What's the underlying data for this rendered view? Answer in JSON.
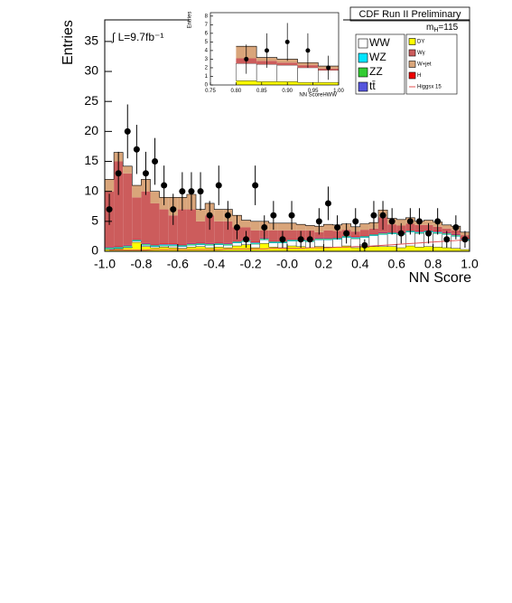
{
  "chart_data": [
    {
      "type": "stacked_histogram",
      "title": "CDF Run II Preliminary",
      "x_label": "NN Score",
      "y_label": "Entries",
      "luminosity": "∫ L=9.7fb⁻¹",
      "mass_label": {
        "symbol": "m",
        "subscript": "H",
        "text": "=115"
      },
      "legend": "upper right",
      "bins": [
        -1,
        -0.95,
        -0.9,
        -0.85,
        -0.8,
        -0.75,
        -0.7,
        -0.65,
        -0.6,
        -0.55,
        -0.5,
        -0.45,
        -0.4,
        -0.35,
        -0.3,
        -0.25,
        -0.2,
        -0.15,
        -0.1,
        -0.05,
        0,
        0.05,
        0.1,
        0.15,
        0.2,
        0.25,
        0.3,
        0.35,
        0.4,
        0.45,
        0.5,
        0.55,
        0.6,
        0.65,
        0.7,
        0.75,
        0.8,
        0.85,
        0.9,
        0.95,
        1
      ],
      "xlim": [
        -1,
        1
      ],
      "ylim": [
        0,
        38.6
      ],
      "xticks": [
        {
          "value": -1,
          "label": "-1.0"
        },
        -0.8,
        -0.6,
        -0.4,
        -0.2,
        {
          "value": 0,
          "label": "-0.0"
        },
        0.2,
        0.4,
        0.6,
        0.8,
        {
          "value": 1,
          "label": "1.0"
        }
      ],
      "yticks": [
        0,
        5,
        10,
        15,
        20,
        25,
        30,
        35
      ],
      "series": [
        {
          "name": "DY",
          "color": "#ffff00",
          "values": [
            0.3,
            0.4,
            0.6,
            1.5,
            0.8,
            0.6,
            0.7,
            0.6,
            0.5,
            0.7,
            0.8,
            0.6,
            0.7,
            0.6,
            0.9,
            1.1,
            0.6,
            1.3,
            0.7,
            0.6,
            0.9,
            0.8,
            0.6,
            0.8,
            0.7,
            0.7,
            0.9,
            0.6,
            0.7,
            0.8,
            0.8,
            0.8,
            0.6,
            0.9,
            0.7,
            0.8,
            0.7,
            0.6,
            0.5,
            0.3
          ]
        },
        {
          "name": "WW",
          "color": "#ffffff",
          "values": [
            0.1,
            0.1,
            0.1,
            0.2,
            0.2,
            0.2,
            0.2,
            0.3,
            0.3,
            0.3,
            0.3,
            0.4,
            0.4,
            0.4,
            0.5,
            0.5,
            0.6,
            0.6,
            0.7,
            0.8,
            0.8,
            0.9,
            1.0,
            1.1,
            1.2,
            1.3,
            1.4,
            1.5,
            1.6,
            1.8,
            2.0,
            2.1,
            2.2,
            2.3,
            2.3,
            2.4,
            2.3,
            2.2,
            2.0,
            1.5
          ]
        },
        {
          "name": "WZ",
          "color": "#00e5ff",
          "values": [
            0.1,
            0.1,
            0.1,
            0.1,
            0.1,
            0.1,
            0.1,
            0.1,
            0.1,
            0.1,
            0.1,
            0.1,
            0.1,
            0.1,
            0.1,
            0.1,
            0.1,
            0.1,
            0.1,
            0.1,
            0.1,
            0.1,
            0.1,
            0.1,
            0.1,
            0.1,
            0.1,
            0.1,
            0.1,
            0.1,
            0.1,
            0.1,
            0.1,
            0.1,
            0.1,
            0.1,
            0.1,
            0.1,
            0.1,
            0.1
          ]
        },
        {
          "name": "ZZ",
          "color": "#33cc33",
          "values": [
            0.1,
            0.1,
            0.1,
            0.1,
            0.1,
            0.1,
            0.1,
            0.1,
            0.1,
            0.1,
            0.1,
            0.1,
            0.1,
            0.1,
            0.1,
            0.1,
            0.1,
            0.1,
            0.1,
            0.1,
            0.1,
            0.1,
            0.1,
            0.1,
            0.1,
            0.1,
            0.1,
            0.1,
            0.1,
            0.1,
            0.1,
            0.1,
            0.1,
            0.1,
            0.1,
            0.1,
            0.1,
            0.1,
            0.1,
            0.1
          ]
        },
        {
          "name": "tt̄",
          "color": "#5555dd",
          "values": [
            0.1,
            0.1,
            0.1,
            0.1,
            0.1,
            0.1,
            0.1,
            0.1,
            0.1,
            0.1,
            0.1,
            0.1,
            0.1,
            0.1,
            0.1,
            0.1,
            0.1,
            0.1,
            0.1,
            0.1,
            0.1,
            0.1,
            0.1,
            0.1,
            0.1,
            0.1,
            0.1,
            0.1,
            0.1,
            0.1,
            0.1,
            0.1,
            0.1,
            0.1,
            0.1,
            0.1,
            0.1,
            0.1,
            0.1,
            0.1
          ]
        },
        {
          "name": "H",
          "color": "#ee0000",
          "values": [
            0.1,
            0.1,
            0.1,
            0.1,
            0.1,
            0.1,
            0.1,
            0.1,
            0.1,
            0.1,
            0.1,
            0.1,
            0.1,
            0.1,
            0.1,
            0.1,
            0.1,
            0.1,
            0.1,
            0.1,
            0.1,
            0.1,
            0.1,
            0.1,
            0.1,
            0.1,
            0.1,
            0.1,
            0.1,
            0.1,
            0.1,
            0.1,
            0.1,
            0.1,
            0.1,
            0.1,
            0.1,
            0.1,
            0.1,
            0.1
          ]
        },
        {
          "name": "Wγ",
          "color": "#cc5c5c",
          "values": [
            9.2,
            14.1,
            11.9,
            6.9,
            8.6,
            6.8,
            5.7,
            4.7,
            5.8,
            5.6,
            3.5,
            4.6,
            3.5,
            3.6,
            2.2,
            2.0,
            1.9,
            1.2,
            1.7,
            1.7,
            1.4,
            1.4,
            1.5,
            0.9,
            1.2,
            1.0,
            0.9,
            0.8,
            0.9,
            0.8,
            2.5,
            1.2,
            1.1,
            1.0,
            1.0,
            0.8,
            0.7,
            0.6,
            0.6,
            0.5
          ]
        },
        {
          "name": "W+jet",
          "color": "#d9a57a",
          "values": [
            2,
            1.5,
            1.2,
            2,
            2,
            2,
            2,
            3,
            2,
            2.5,
            2,
            2,
            2,
            2,
            2,
            1.2,
            1.5,
            1.5,
            1.2,
            1.2,
            1.2,
            1.0,
            0.8,
            1,
            1,
            1,
            1,
            0.8,
            1,
            1,
            1.2,
            1.0,
            1.0,
            1.0,
            0.6,
            0.8,
            0.8,
            0.6,
            0.7,
            0.5
          ]
        },
        {
          "name": "Higgsx 15",
          "color": "#e05050",
          "style": "line",
          "values": [
            0.2,
            0.2,
            0.2,
            0.2,
            0.2,
            0.3,
            0.3,
            0.3,
            0.3,
            0.3,
            0.3,
            0.3,
            0.3,
            0.4,
            0.4,
            0.4,
            0.4,
            0.4,
            0.5,
            0.5,
            0.5,
            0.5,
            0.6,
            0.6,
            0.6,
            0.7,
            0.7,
            0.8,
            0.8,
            0.9,
            1.0,
            1.1,
            1.2,
            1.3,
            1.4,
            1.5,
            1.6,
            1.7,
            1.8,
            1.9
          ]
        }
      ],
      "data_points": {
        "values": [
          7,
          13,
          20,
          17,
          13,
          15,
          11,
          7,
          10,
          10,
          10,
          6,
          11,
          6,
          4,
          2,
          11,
          4,
          6,
          2,
          6,
          2,
          2,
          5,
          8,
          4,
          3,
          5,
          1,
          6,
          6,
          5,
          3,
          5,
          5,
          3,
          5,
          2,
          4,
          2
        ],
        "errors": [
          2.6,
          3.6,
          4.5,
          4.1,
          3.6,
          3.9,
          3.3,
          2.6,
          3.2,
          3.2,
          3.2,
          2.4,
          3.3,
          2.4,
          2,
          1.4,
          3.3,
          2,
          2.4,
          1.4,
          2.4,
          1.4,
          1.4,
          2.2,
          2.8,
          2,
          1.7,
          2.2,
          1,
          2.4,
          2.4,
          2.2,
          1.7,
          2.2,
          2.2,
          1.7,
          2.2,
          1.4,
          2,
          1.4
        ]
      }
    },
    {
      "type": "stacked_histogram",
      "x_label": "NN ScoreHWW",
      "y_label": "Entries",
      "bins": [
        0.8,
        0.84,
        0.88,
        0.92,
        0.96,
        1.0
      ],
      "xlim": [
        0.75,
        1.0
      ],
      "ylim": [
        0,
        8.4
      ],
      "xticks": [
        0.75,
        {
          "value": 0.8,
          "label": "0.80"
        },
        0.85,
        {
          "value": 0.9,
          "label": "0.90"
        },
        0.95,
        {
          "value": 1,
          "label": "1.00"
        }
      ],
      "yticks": [
        0,
        1,
        2,
        3,
        4,
        5,
        6,
        7,
        8
      ],
      "series": [
        {
          "name": "DY",
          "color": "#ffff00",
          "values": [
            0.5,
            0.4,
            0.4,
            0.3,
            0.3
          ]
        },
        {
          "name": "WW",
          "color": "#ffffff",
          "values": [
            2.0,
            2.0,
            1.9,
            1.7,
            1.4
          ]
        },
        {
          "name": "Wγ",
          "color": "#cc5c5c",
          "values": [
            0.6,
            0.4,
            0.3,
            0.3,
            0.2
          ]
        },
        {
          "name": "W+jet",
          "color": "#d9a57a",
          "values": [
            1.4,
            0.4,
            0.4,
            0.3,
            0.3
          ]
        }
      ],
      "data_points": {
        "values": [
          3,
          4,
          5,
          4,
          2
        ],
        "errors": [
          1.7,
          2,
          2.2,
          2,
          1.4
        ]
      }
    }
  ]
}
